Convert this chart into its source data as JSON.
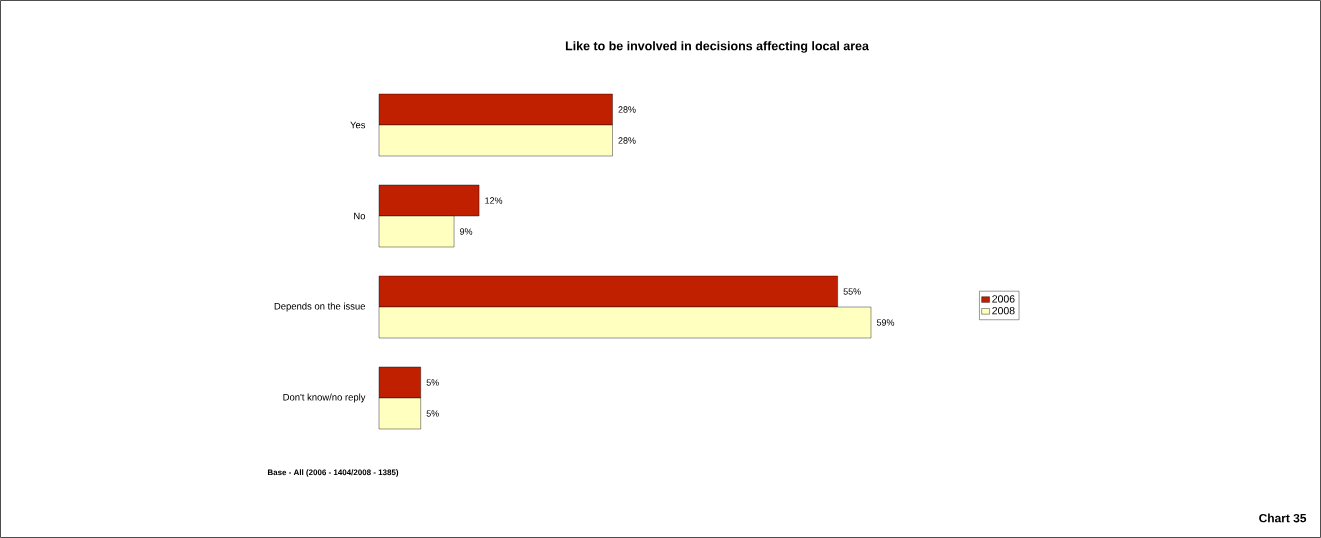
{
  "chart_data": {
    "type": "bar",
    "orientation": "horizontal",
    "title": "Like to be involved in decisions affecting local area",
    "categories": [
      "Yes",
      "No",
      "Depends on the issue",
      "Don't know/no reply"
    ],
    "series": [
      {
        "name": "2006",
        "color": "#c02000",
        "values": [
          28,
          12,
          55,
          5
        ],
        "value_labels": [
          "28%",
          "12%",
          "55%",
          "5%"
        ]
      },
      {
        "name": "2008",
        "color": "#ffffc0",
        "values": [
          28,
          9,
          59,
          5
        ],
        "value_labels": [
          "28%",
          "9%",
          "59%",
          "5%"
        ]
      }
    ],
    "legend": "right",
    "annotations": [
      "Base - All (2006 - 1404/2008 - 1385)",
      "Chart 35"
    ]
  }
}
